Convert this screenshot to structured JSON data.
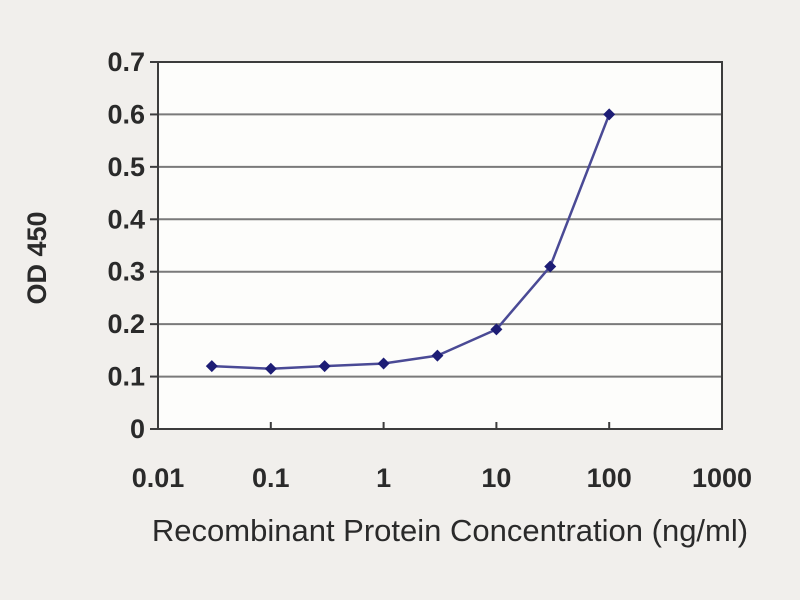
{
  "chart_data": {
    "type": "line",
    "title": "",
    "xlabel": "Recombinant Protein Concentration (ng/ml)",
    "ylabel": "OD 450",
    "x_scale": "log",
    "xlim": [
      0.01,
      1000
    ],
    "ylim": [
      0,
      0.7
    ],
    "x": [
      0.03,
      0.1,
      0.3,
      1,
      3,
      10,
      30,
      100
    ],
    "y": [
      0.12,
      0.115,
      0.12,
      0.125,
      0.14,
      0.19,
      0.31,
      0.6
    ],
    "x_ticks": [
      0.01,
      0.1,
      1,
      10,
      100,
      1000
    ],
    "x_tick_labels": [
      "0.01",
      "0.1",
      "1",
      "10",
      "100",
      "1000"
    ],
    "y_ticks": [
      0,
      0.1,
      0.2,
      0.3,
      0.4,
      0.5,
      0.6,
      0.7
    ],
    "y_tick_labels": [
      "0",
      "0.1",
      "0.2",
      "0.3",
      "0.4",
      "0.5",
      "0.6",
      "0.7"
    ],
    "grid": "horizontal",
    "legend": "none",
    "marker": "diamond",
    "colors": {
      "page_bg": "#f1efec",
      "plot_bg": "#fdfdfb",
      "grid": "#7a7a7a",
      "axis": "#3c3c3c",
      "line": "#4a4a95",
      "marker": "#1d1d75",
      "text": "#2a2a2a"
    }
  }
}
